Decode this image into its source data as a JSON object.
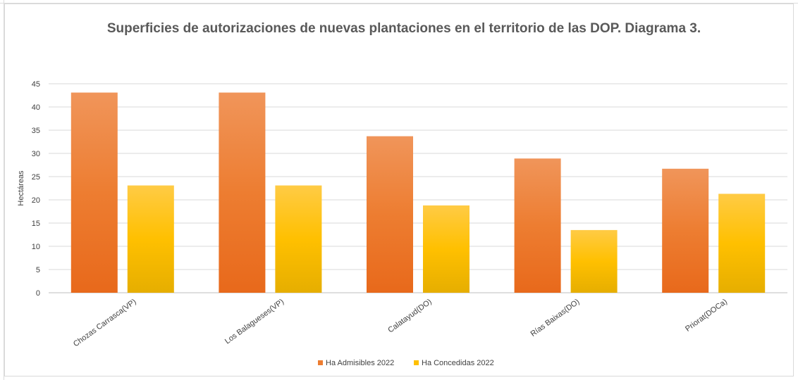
{
  "chart_data": {
    "type": "bar",
    "title": "Superficies de autorizaciones de nuevas plantaciones en el territorio de las DOP. Diagrama 3.",
    "xlabel": "",
    "ylabel": "Hectáreas",
    "ylim": [
      0,
      45
    ],
    "yticks": [
      0,
      5,
      10,
      15,
      20,
      25,
      30,
      35,
      40,
      45
    ],
    "categories": [
      "Chozas Carrasca(VP)",
      "Los Balagueses(VP)",
      "Calatayud(DO)",
      "Rías Baixas(DO)",
      "Priorat(DOCa)"
    ],
    "series": [
      {
        "name": "Ha Admisibles 2022",
        "values": [
          43.1,
          43.1,
          33.7,
          28.9,
          26.7
        ],
        "color": "#ED7D31",
        "color_light": "#F0955A",
        "color_dark": "#E8691B"
      },
      {
        "name": "Ha Concedidas 2022",
        "values": [
          23.1,
          23.1,
          18.8,
          13.5,
          21.3
        ],
        "color": "#FFC000",
        "color_light": "#FFCB45",
        "color_dark": "#E6AE00"
      }
    ],
    "grid": true,
    "legend_position": "bottom"
  }
}
